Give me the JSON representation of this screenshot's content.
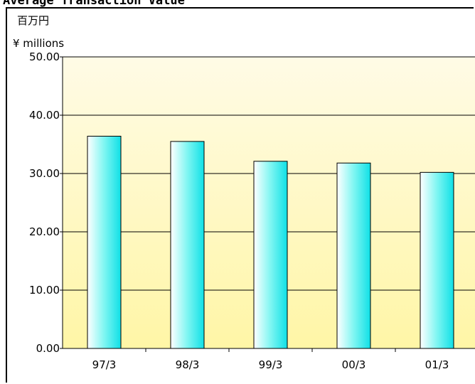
{
  "chart_data": {
    "type": "bar",
    "title": "Average Transaction Value",
    "unit_jp": "百万円",
    "unit_en": "¥ millions",
    "categories": [
      "97/3",
      "98/3",
      "99/3",
      "00/3",
      "01/3"
    ],
    "values": [
      36.4,
      35.5,
      32.1,
      31.8,
      30.2
    ],
    "ylim": [
      0,
      50
    ],
    "yticks": [
      "0.00",
      "10.00",
      "20.00",
      "30.00",
      "40.00",
      "50.00"
    ],
    "grid": true,
    "legend": "none",
    "colors": {
      "bar_light": "#ffffff",
      "bar_mid": "#7ff6f2",
      "bar_dark": "#10e0e6",
      "bar_edge": "#000000",
      "bg_top": "#fffbe6",
      "bg_bottom": "#fff6a6"
    }
  }
}
